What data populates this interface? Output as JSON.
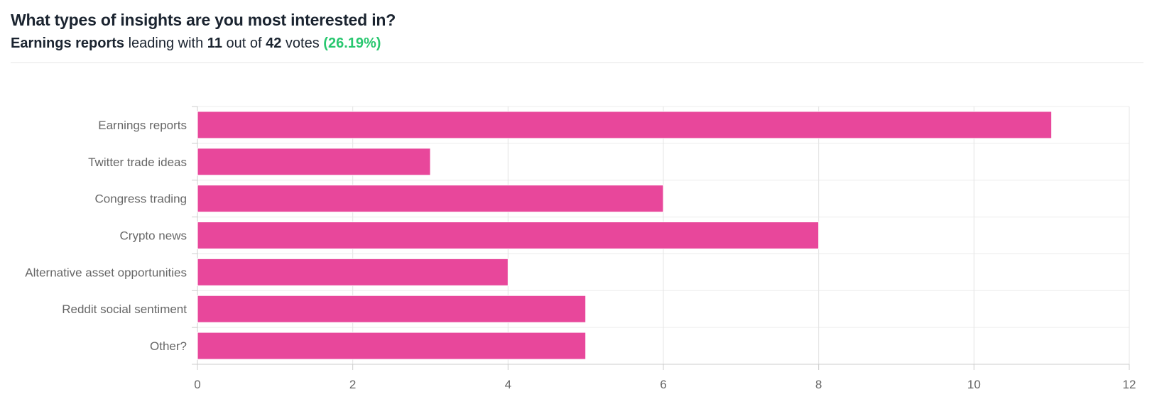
{
  "header": {
    "title": "What types of insights are you most interested in?",
    "subtitle": {
      "leader": "Earnings reports",
      "mid1": " leading with ",
      "votes": "11",
      "mid2": " out of ",
      "total": "42",
      "mid3": " votes ",
      "percent": "(26.19%)"
    }
  },
  "chart_data": {
    "type": "bar",
    "orientation": "horizontal",
    "title": "What types of insights are you most interested in?",
    "categories": [
      "Earnings reports",
      "Twitter trade ideas",
      "Congress trading",
      "Crypto news",
      "Alternative asset opportunities",
      "Reddit social sentiment",
      "Other?"
    ],
    "values": [
      11,
      3,
      6,
      8,
      4,
      5,
      5
    ],
    "total_votes": 42,
    "xticks": [
      0,
      2,
      4,
      6,
      8,
      10,
      12
    ],
    "xlim": [
      0,
      12
    ],
    "grid": true,
    "legend": "none",
    "xlabel": "",
    "ylabel": ""
  },
  "colors": {
    "bar_fill": "#e8479b",
    "bar_border": "#ffffff",
    "accent_green": "#28c76f",
    "title_text": "#1b2430",
    "label_text": "#666666",
    "grid_vertical": "#e4e4e4",
    "grid_row": "#ececec",
    "axis_line": "#cccccc",
    "divider": "#e5e5e5"
  }
}
